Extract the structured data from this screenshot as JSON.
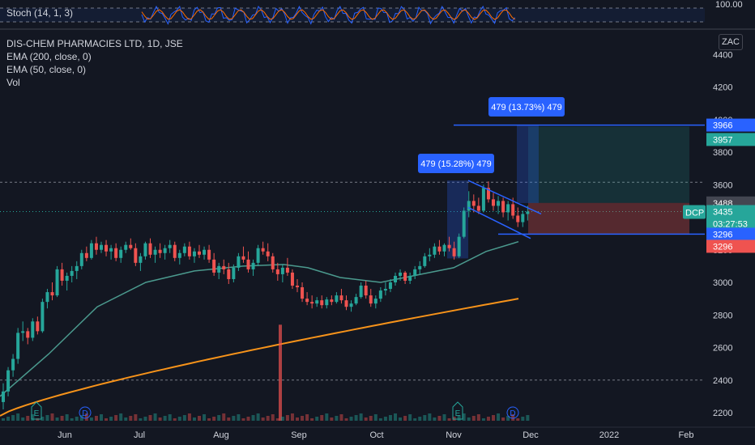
{
  "indicators": {
    "stoch_label": "Stoch (14, 1, 3)",
    "stoch_level": "100.00",
    "title": "DIS-CHEM PHARMACIES LTD, 1D, JSE",
    "ema200": "EMA (200, close, 0)",
    "ema50": "EMA (50, close, 0)",
    "vol": "Vol"
  },
  "currency": "ZAC",
  "colors": {
    "up": "#26a69a",
    "down": "#ef5350",
    "ema200": "#f7931a",
    "ema50": "#4b9a8e",
    "blue": "#2962ff",
    "grid_dashed": "#787b86"
  },
  "chart_data": {
    "type": "candlestick",
    "y_ticks": [
      2200,
      2400,
      2600,
      2800,
      3000,
      3200,
      3400,
      3600,
      3800,
      4000,
      4200,
      4400
    ],
    "x_ticks": [
      "Jun",
      "Jul",
      "Aug",
      "Sep",
      "Oct",
      "Nov",
      "Dec",
      "2022",
      "Feb"
    ],
    "ylim": [
      2160,
      4460
    ],
    "price_labels": [
      {
        "text": "3966",
        "value": 3966,
        "color": "#2962ff"
      },
      {
        "text": "3957",
        "value": 3957,
        "color": "#26a69a"
      },
      {
        "text": "3488",
        "value": 3488,
        "color": "#434651"
      },
      {
        "text": "3435",
        "value": 3435,
        "color": "#26a69a"
      },
      {
        "text": "03:27:53",
        "value": 3435,
        "color": "#26a69a"
      },
      {
        "text": "3296",
        "value": 3296,
        "color": "#2962ff"
      },
      {
        "text": "3296",
        "value": 3296,
        "color": "#ef5350"
      }
    ],
    "symbol_tag": "DCP",
    "measure_labels": [
      {
        "text": "479 (15.28%) 479",
        "value": 479
      },
      {
        "text": "479 (13.73%) 479",
        "value": 479
      }
    ],
    "event_markers": [
      "E",
      "D",
      "E",
      "D"
    ],
    "dashed_levels": [
      3615,
      2400
    ],
    "candles": [
      [
        2265,
        2380,
        2220,
        2330
      ],
      [
        2330,
        2480,
        2300,
        2460
      ],
      [
        2460,
        2560,
        2420,
        2530
      ],
      [
        2530,
        2720,
        2500,
        2690
      ],
      [
        2690,
        2760,
        2640,
        2700
      ],
      [
        2700,
        2720,
        2620,
        2660
      ],
      [
        2660,
        2780,
        2640,
        2760
      ],
      [
        2760,
        2790,
        2680,
        2700
      ],
      [
        2700,
        2900,
        2690,
        2880
      ],
      [
        2880,
        2960,
        2840,
        2940
      ],
      [
        2940,
        3000,
        2890,
        2920
      ],
      [
        2920,
        3100,
        2910,
        3080
      ],
      [
        3080,
        3120,
        2980,
        3010
      ],
      [
        3010,
        3060,
        2950,
        3040
      ],
      [
        3040,
        3100,
        3000,
        3070
      ],
      [
        3070,
        3130,
        3020,
        3100
      ],
      [
        3100,
        3200,
        3080,
        3180
      ],
      [
        3180,
        3220,
        3130,
        3150
      ],
      [
        3150,
        3260,
        3140,
        3240
      ],
      [
        3240,
        3280,
        3170,
        3200
      ],
      [
        3200,
        3250,
        3180,
        3230
      ],
      [
        3230,
        3260,
        3160,
        3190
      ],
      [
        3190,
        3230,
        3140,
        3210
      ],
      [
        3210,
        3240,
        3130,
        3150
      ],
      [
        3150,
        3220,
        3120,
        3200
      ],
      [
        3200,
        3250,
        3180,
        3230
      ],
      [
        3230,
        3270,
        3200,
        3210
      ],
      [
        3210,
        3240,
        3100,
        3120
      ],
      [
        3120,
        3180,
        3070,
        3160
      ],
      [
        3160,
        3250,
        3140,
        3240
      ],
      [
        3240,
        3270,
        3150,
        3170
      ],
      [
        3170,
        3220,
        3120,
        3200
      ],
      [
        3200,
        3240,
        3150,
        3180
      ],
      [
        3180,
        3230,
        3140,
        3210
      ],
      [
        3210,
        3260,
        3180,
        3230
      ],
      [
        3230,
        3250,
        3130,
        3150
      ],
      [
        3150,
        3200,
        3110,
        3180
      ],
      [
        3180,
        3240,
        3160,
        3220
      ],
      [
        3220,
        3250,
        3140,
        3160
      ],
      [
        3160,
        3210,
        3120,
        3190
      ],
      [
        3190,
        3230,
        3150,
        3170
      ],
      [
        3170,
        3220,
        3140,
        3200
      ],
      [
        3200,
        3230,
        3120,
        3140
      ],
      [
        3140,
        3180,
        3040,
        3060
      ],
      [
        3060,
        3120,
        3020,
        3100
      ],
      [
        3100,
        3140,
        3050,
        3080
      ],
      [
        3080,
        3120,
        2990,
        3020
      ],
      [
        3020,
        3110,
        3000,
        3090
      ],
      [
        3090,
        3180,
        3070,
        3160
      ],
      [
        3160,
        3220,
        3120,
        3140
      ],
      [
        3140,
        3190,
        3060,
        3080
      ],
      [
        3080,
        3140,
        3040,
        3120
      ],
      [
        3120,
        3230,
        3100,
        3210
      ],
      [
        3210,
        3250,
        3170,
        3190
      ],
      [
        3190,
        3240,
        3130,
        3160
      ],
      [
        3160,
        3180,
        3060,
        3080
      ],
      [
        3080,
        3120,
        3010,
        3050
      ],
      [
        3050,
        3110,
        3000,
        3090
      ],
      [
        3090,
        3150,
        3040,
        3060
      ],
      [
        3060,
        3080,
        2960,
        2980
      ],
      [
        2980,
        3020,
        2940,
        2970
      ],
      [
        2970,
        3000,
        2880,
        2900
      ],
      [
        2900,
        2940,
        2860,
        2880
      ],
      [
        2880,
        2920,
        2840,
        2870
      ],
      [
        2870,
        2910,
        2850,
        2890
      ],
      [
        2890,
        2920,
        2840,
        2860
      ],
      [
        2860,
        2910,
        2840,
        2895
      ],
      [
        2895,
        2920,
        2860,
        2880
      ],
      [
        2880,
        2940,
        2870,
        2920
      ],
      [
        2920,
        2960,
        2870,
        2890
      ],
      [
        2890,
        2920,
        2830,
        2850
      ],
      [
        2850,
        2890,
        2820,
        2870
      ],
      [
        2870,
        2930,
        2860,
        2910
      ],
      [
        2910,
        3000,
        2900,
        2980
      ],
      [
        2980,
        3010,
        2900,
        2920
      ],
      [
        2920,
        2960,
        2850,
        2870
      ],
      [
        2870,
        2920,
        2840,
        2900
      ],
      [
        2900,
        2970,
        2880,
        2950
      ],
      [
        2950,
        3000,
        2920,
        2960
      ],
      [
        2960,
        3020,
        2940,
        3000
      ],
      [
        3000,
        3060,
        2980,
        3040
      ],
      [
        3040,
        3080,
        3010,
        3060
      ],
      [
        3060,
        3070,
        2990,
        3010
      ],
      [
        3010,
        3060,
        2990,
        3040
      ],
      [
        3040,
        3100,
        3020,
        3080
      ],
      [
        3080,
        3130,
        3050,
        3100
      ],
      [
        3100,
        3180,
        3090,
        3160
      ],
      [
        3160,
        3210,
        3130,
        3170
      ],
      [
        3170,
        3240,
        3150,
        3220
      ],
      [
        3220,
        3260,
        3170,
        3190
      ],
      [
        3190,
        3240,
        3160,
        3230
      ],
      [
        3230,
        3280,
        3190,
        3210
      ],
      [
        3210,
        3250,
        3140,
        3160
      ],
      [
        3160,
        3300,
        3150,
        3280
      ],
      [
        3280,
        3460,
        3270,
        3440
      ],
      [
        3440,
        3560,
        3400,
        3500
      ],
      [
        3500,
        3540,
        3430,
        3470
      ],
      [
        3470,
        3520,
        3420,
        3440
      ],
      [
        3440,
        3600,
        3430,
        3580
      ],
      [
        3580,
        3620,
        3490,
        3510
      ],
      [
        3510,
        3550,
        3440,
        3470
      ],
      [
        3470,
        3530,
        3420,
        3500
      ],
      [
        3500,
        3520,
        3400,
        3430
      ],
      [
        3430,
        3500,
        3380,
        3480
      ],
      [
        3480,
        3520,
        3390,
        3410
      ],
      [
        3410,
        3460,
        3340,
        3370
      ],
      [
        3370,
        3440,
        3340,
        3420
      ],
      [
        3420,
        3470,
        3380,
        3435
      ]
    ],
    "volume_spike": {
      "index": 55,
      "value": 8
    }
  }
}
